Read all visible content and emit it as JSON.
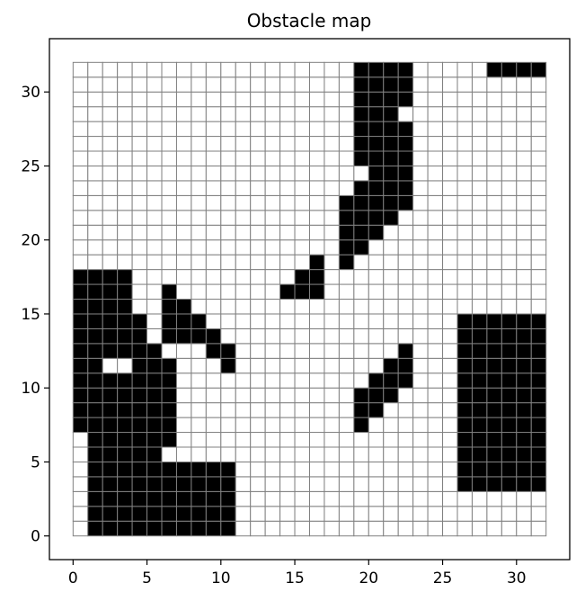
{
  "chart_data": {
    "type": "heatmap",
    "title": "Obstacle map",
    "xlabel": "",
    "ylabel": "",
    "xlim": [
      -1.6,
      33.6
    ],
    "ylim": [
      -1.6,
      33.6
    ],
    "grid_cells": 32,
    "xticks": [
      0,
      5,
      10,
      15,
      20,
      25,
      30
    ],
    "yticks": [
      0,
      5,
      10,
      15,
      20,
      25,
      30
    ],
    "colors": {
      "obstacle": "#000000",
      "free": "#ffffff",
      "grid": "#808080"
    },
    "obstacle_rows": [
      {
        "y": 0,
        "xs": [
          1,
          2,
          3,
          4,
          5,
          6,
          7,
          8,
          9,
          10
        ]
      },
      {
        "y": 1,
        "xs": [
          1,
          2,
          3,
          4,
          5,
          6,
          7,
          8,
          9,
          10
        ]
      },
      {
        "y": 2,
        "xs": [
          1,
          2,
          3,
          4,
          5,
          6,
          7,
          8,
          9,
          10
        ]
      },
      {
        "y": 3,
        "xs": [
          1,
          2,
          3,
          4,
          5,
          6,
          7,
          8,
          9,
          10,
          26,
          27,
          28,
          29,
          30,
          31
        ]
      },
      {
        "y": 4,
        "xs": [
          1,
          2,
          3,
          4,
          5,
          6,
          7,
          8,
          9,
          10,
          26,
          27,
          28,
          29,
          30,
          31
        ]
      },
      {
        "y": 5,
        "xs": [
          1,
          2,
          3,
          4,
          5,
          26,
          27,
          28,
          29,
          30,
          31
        ]
      },
      {
        "y": 6,
        "xs": [
          1,
          2,
          3,
          4,
          5,
          6,
          26,
          27,
          28,
          29,
          30,
          31
        ]
      },
      {
        "y": 7,
        "xs": [
          0,
          1,
          2,
          3,
          4,
          5,
          6,
          19,
          26,
          27,
          28,
          29,
          30,
          31
        ]
      },
      {
        "y": 8,
        "xs": [
          0,
          1,
          2,
          3,
          4,
          5,
          6,
          19,
          20,
          26,
          27,
          28,
          29,
          30,
          31
        ]
      },
      {
        "y": 9,
        "xs": [
          0,
          1,
          2,
          3,
          4,
          5,
          6,
          19,
          20,
          21,
          26,
          27,
          28,
          29,
          30,
          31
        ]
      },
      {
        "y": 10,
        "xs": [
          0,
          1,
          2,
          3,
          4,
          5,
          6,
          20,
          21,
          22,
          26,
          27,
          28,
          29,
          30,
          31
        ]
      },
      {
        "y": 11,
        "xs": [
          0,
          1,
          4,
          5,
          6,
          10,
          21,
          22,
          26,
          27,
          28,
          29,
          30,
          31
        ]
      },
      {
        "y": 12,
        "xs": [
          0,
          1,
          2,
          3,
          4,
          5,
          9,
          10,
          22,
          26,
          27,
          28,
          29,
          30,
          31
        ]
      },
      {
        "y": 13,
        "xs": [
          0,
          1,
          2,
          3,
          4,
          6,
          7,
          8,
          9,
          26,
          27,
          28,
          29,
          30,
          31
        ]
      },
      {
        "y": 14,
        "xs": [
          0,
          1,
          2,
          3,
          4,
          6,
          7,
          8,
          26,
          27,
          28,
          29,
          30,
          31
        ]
      },
      {
        "y": 15,
        "xs": [
          0,
          1,
          2,
          3,
          6,
          7
        ]
      },
      {
        "y": 16,
        "xs": [
          0,
          1,
          2,
          3,
          6,
          14,
          15,
          16
        ]
      },
      {
        "y": 17,
        "xs": [
          0,
          1,
          2,
          3,
          15,
          16
        ]
      },
      {
        "y": 18,
        "xs": [
          16,
          18
        ]
      },
      {
        "y": 19,
        "xs": [
          18,
          19
        ]
      },
      {
        "y": 20,
        "xs": [
          18,
          19,
          20
        ]
      },
      {
        "y": 21,
        "xs": [
          18,
          19,
          20,
          21
        ]
      },
      {
        "y": 22,
        "xs": [
          18,
          19,
          20,
          21,
          22
        ]
      },
      {
        "y": 23,
        "xs": [
          19,
          20,
          21,
          22
        ]
      },
      {
        "y": 24,
        "xs": [
          20,
          21,
          22
        ]
      },
      {
        "y": 25,
        "xs": [
          19,
          20,
          21,
          22
        ]
      },
      {
        "y": 26,
        "xs": [
          19,
          20,
          21,
          22
        ]
      },
      {
        "y": 27,
        "xs": [
          19,
          20,
          21,
          22
        ]
      },
      {
        "y": 28,
        "xs": [
          19,
          20,
          21
        ]
      },
      {
        "y": 29,
        "xs": [
          19,
          20,
          21,
          22
        ]
      },
      {
        "y": 30,
        "xs": [
          19,
          20,
          21,
          22
        ]
      },
      {
        "y": 31,
        "xs": [
          19,
          20,
          21,
          22,
          28,
          29,
          30,
          31
        ]
      }
    ]
  }
}
